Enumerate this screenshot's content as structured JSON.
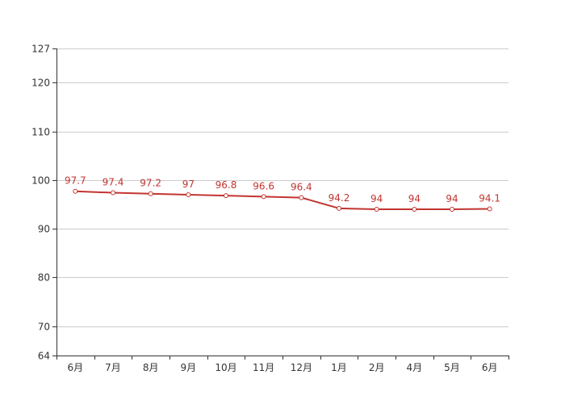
{
  "chart_data": {
    "type": "line",
    "title": "",
    "xlabel": "",
    "ylabel": "",
    "ylim": [
      64,
      127
    ],
    "yticks": [
      64,
      70,
      80,
      90,
      100,
      110,
      120,
      127
    ],
    "categories": [
      "6月",
      "7月",
      "8月",
      "9月",
      "10月",
      "11月",
      "12月",
      "1月",
      "2月",
      "4月",
      "5月",
      "6月"
    ],
    "series": [
      {
        "values": [
          97.7,
          97.4,
          97.2,
          97,
          96.8,
          96.6,
          96.4,
          94.2,
          94,
          94,
          94,
          94.1
        ]
      }
    ],
    "data_labels": [
      "97.7",
      "97.4",
      "97.2",
      "97",
      "96.8",
      "96.6",
      "96.4",
      "94.2",
      "94",
      "94",
      "94",
      "94.1"
    ],
    "grid": true,
    "legend": "none"
  },
  "colors": {
    "series": "#c23531",
    "axis": "#333333",
    "grid": "#cccccc"
  }
}
